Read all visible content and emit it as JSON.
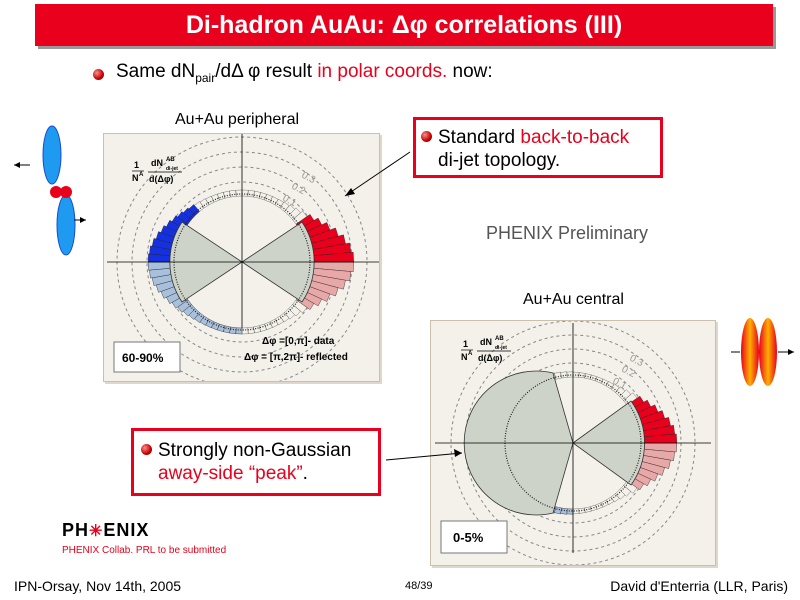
{
  "title": "Di-hadron AuAu: Δφ correlations (III)",
  "subtitle": {
    "part1": "Same dN",
    "sub": "pair",
    "part2": "/dΔ φ result ",
    "highlight": "in polar coords.",
    "part3": " now:"
  },
  "peripheral": {
    "label": "Au+Au peripheral",
    "badge": "60-90%",
    "ylabel_num": "1",
    "ylabel_den": "N",
    "ylabel_sup": "A",
    "frac_num": "dN",
    "frac_num_sup": "AB",
    "frac_num_sub": "di-jet",
    "frac_den": "d(Δφ)",
    "ring_labels": [
      "0.3",
      "0.2",
      "0.1"
    ],
    "legend_data": "Δφ =[0,π]- data",
    "legend_reflected": "Δφ = [π,2π]- reflected"
  },
  "central": {
    "label": "Au+Au central",
    "badge": "0-5%",
    "ylabel_num": "1",
    "ylabel_den": "N",
    "ylabel_sup": "A",
    "frac_num": "dN",
    "frac_num_sup": "AB",
    "frac_num_sub": "di-jet",
    "frac_den": "d(Δφ)",
    "ring_labels": [
      "0.3",
      "0.2",
      "0.1"
    ]
  },
  "callout_top": {
    "part1": "Standard ",
    "highlight": "back-to-back",
    "line2": "di-jet topology."
  },
  "callout_bottom": {
    "line1": "Strongly non-Gaussian",
    "highlight": "away-side “peak”",
    "tail": "."
  },
  "preliminary": "PHENIX Preliminary",
  "logo": {
    "left": "PH",
    "right": "ENIX"
  },
  "citation": "PHENIX Collab. PRL to be submitted",
  "footer": {
    "left": "IPN-Orsay, Nov 14th, 2005",
    "center": "48/39",
    "right": "David d'Enterria (LLR, Paris)"
  },
  "colors": {
    "accent_red": "#e8001c",
    "near_blue": "#1530e0",
    "light_blue": "#a9c0dc",
    "pink": "#e8a8a8",
    "sector_gray": "#cdd3c8"
  }
}
